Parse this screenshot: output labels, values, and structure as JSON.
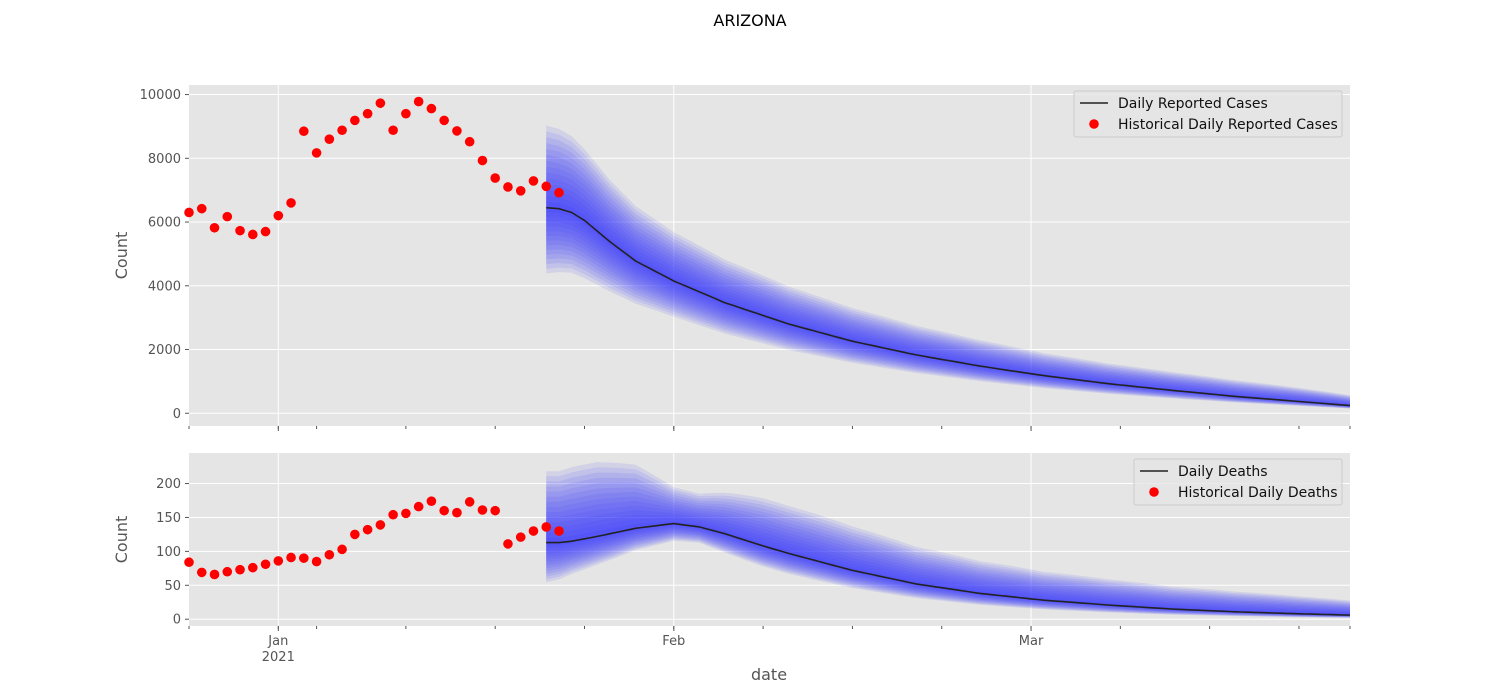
{
  "figure": {
    "suptitle": "ARIZONA",
    "xlabel": "date",
    "x_ticks": [
      {
        "label": "Jan",
        "sublabel": "2021",
        "day": 0
      },
      {
        "label": "Feb",
        "sublabel": "",
        "day": 31
      },
      {
        "label": "Mar",
        "sublabel": "",
        "day": 59
      }
    ],
    "x_minor_tick_days": [
      -7,
      0,
      3,
      10,
      17,
      24,
      31,
      38,
      45,
      52,
      59,
      66,
      73,
      80,
      84
    ],
    "xlim_days": [
      -7,
      84
    ],
    "forecast_start_day": 21
  },
  "colors": {
    "axes_bg": "#e5e5e5",
    "grid": "#ffffff",
    "historical_points": "#ff0000",
    "forecast_line": "#222222",
    "forecast_band": "#3333ff"
  },
  "chart_data": [
    {
      "type": "scatter+line",
      "ylabel": "Count",
      "ylim": [
        -400,
        10300
      ],
      "yticks": [
        0,
        2000,
        4000,
        6000,
        8000,
        10000
      ],
      "grid": true,
      "legend": {
        "placement": "top-right",
        "entries": [
          {
            "label": "Daily Reported Cases",
            "kind": "line"
          },
          {
            "label": "Historical Daily Reported Cases",
            "kind": "marker"
          }
        ]
      },
      "historical": {
        "x_days": [
          -7,
          -6,
          -5,
          -4,
          -3,
          -2,
          -1,
          0,
          1,
          2,
          3,
          4,
          5,
          6,
          7,
          8,
          9,
          10,
          11,
          12,
          13,
          14,
          15,
          16,
          17,
          18,
          19,
          20,
          21,
          22
        ],
        "values": [
          6300,
          6420,
          5820,
          6170,
          5730,
          5610,
          5700,
          6200,
          6600,
          8850,
          8170,
          8600,
          8880,
          9190,
          9400,
          9730,
          8880,
          9400,
          9780,
          9560,
          9190,
          8860,
          8520,
          7930,
          7380,
          7100,
          6980,
          7290,
          7120,
          6920
        ]
      },
      "forecast": {
        "x_days": [
          21,
          22,
          23,
          24,
          26,
          28,
          31,
          35,
          40,
          45,
          50,
          55,
          60,
          65,
          70,
          75,
          80,
          84
        ],
        "median": [
          6450,
          6420,
          6300,
          6050,
          5380,
          4780,
          4150,
          3470,
          2800,
          2260,
          1830,
          1480,
          1180,
          930,
          720,
          530,
          370,
          240
        ],
        "band_ratio_low": [
          0.68,
          0.69,
          0.7,
          0.7,
          0.71,
          0.72,
          0.73,
          0.72,
          0.71,
          0.7,
          0.69,
          0.68,
          0.67,
          0.66,
          0.65,
          0.64,
          0.63,
          0.62
        ],
        "band_ratio_high": [
          1.4,
          1.39,
          1.38,
          1.37,
          1.36,
          1.36,
          1.37,
          1.39,
          1.42,
          1.46,
          1.5,
          1.55,
          1.6,
          1.68,
          1.8,
          1.95,
          2.15,
          2.35
        ]
      }
    },
    {
      "type": "scatter+line",
      "ylabel": "Count",
      "ylim": [
        -10,
        245
      ],
      "yticks": [
        0,
        50,
        100,
        150,
        200
      ],
      "grid": true,
      "legend": {
        "placement": "top-right",
        "entries": [
          {
            "label": "Daily Deaths",
            "kind": "line"
          },
          {
            "label": "Historical Daily Deaths",
            "kind": "marker"
          }
        ]
      },
      "historical": {
        "x_days": [
          -7,
          -6,
          -5,
          -4,
          -3,
          -2,
          -1,
          0,
          1,
          2,
          3,
          4,
          5,
          6,
          7,
          8,
          9,
          10,
          11,
          12,
          13,
          14,
          15,
          16,
          17,
          18,
          19,
          20,
          21,
          22
        ],
        "values": [
          84,
          69,
          66,
          70,
          73,
          76,
          81,
          86,
          91,
          90,
          85,
          95,
          103,
          125,
          132,
          139,
          154,
          156,
          166,
          174,
          160,
          157,
          173,
          161,
          160,
          111,
          121,
          130,
          136,
          130
        ]
      },
      "forecast": {
        "x_days": [
          21,
          22,
          23,
          25,
          28,
          31,
          33,
          35,
          38,
          40,
          45,
          50,
          55,
          60,
          65,
          70,
          75,
          80,
          84
        ],
        "median": [
          113,
          113,
          115,
          122,
          134,
          141,
          136,
          126,
          108,
          97,
          72,
          52,
          38,
          28,
          21,
          15,
          11,
          8,
          6
        ],
        "band_ratio_low": [
          0.48,
          0.52,
          0.58,
          0.66,
          0.76,
          0.82,
          0.83,
          0.78,
          0.72,
          0.69,
          0.64,
          0.6,
          0.56,
          0.52,
          0.48,
          0.45,
          0.42,
          0.38,
          0.35
        ],
        "band_ratio_high": [
          1.93,
          1.93,
          1.95,
          1.9,
          1.7,
          1.38,
          1.36,
          1.48,
          1.65,
          1.72,
          1.9,
          2.05,
          2.25,
          2.5,
          2.8,
          3.2,
          3.7,
          4.2,
          4.6
        ]
      }
    }
  ]
}
